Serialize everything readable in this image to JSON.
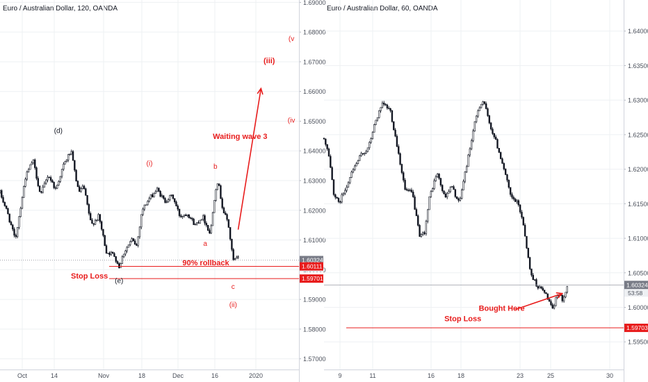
{
  "colors": {
    "accent_red": "#e81c1c",
    "annotation_dark": "#131722",
    "candle": "#131722",
    "axis_text": "#4a4f5a",
    "grid": "#eef0f3",
    "price_tag_gray": "#787b86",
    "timer_tag": "#eef0f3"
  },
  "chart_data": [
    {
      "type": "candlestick",
      "title": "Euro / Australian Dollar, 120, OANDA",
      "symbol": "EURAUD",
      "timeframe": "120",
      "x_ticks": [
        "Oct",
        "14",
        "Nov",
        "18",
        "Dec",
        "16",
        "2020"
      ],
      "y_ticks": [
        "1.57000",
        "1.58000",
        "1.59000",
        "1.60000",
        "1.61000",
        "1.62000",
        "1.63000",
        "1.64000",
        "1.65000",
        "1.66000",
        "1.67000",
        "1.68000",
        "1.69000"
      ],
      "ylim": [
        1.5664,
        1.6908
      ],
      "price_path": [
        [
          0,
          1.626
        ],
        [
          3,
          1.619
        ],
        [
          6,
          1.61
        ],
        [
          10,
          1.631
        ],
        [
          13,
          1.637
        ],
        [
          16,
          1.625
        ],
        [
          19,
          1.632
        ],
        [
          22,
          1.627
        ],
        [
          25,
          1.635
        ],
        [
          28,
          1.64
        ],
        [
          31,
          1.626
        ],
        [
          33,
          1.628
        ],
        [
          36,
          1.615
        ],
        [
          39,
          1.618
        ],
        [
          42,
          1.606
        ],
        [
          45,
          1.605
        ],
        [
          47,
          1.601
        ],
        [
          49,
          1.606
        ],
        [
          52,
          1.61
        ],
        [
          54,
          1.608
        ],
        [
          56,
          1.62
        ],
        [
          59,
          1.624
        ],
        [
          62,
          1.627
        ],
        [
          65,
          1.623
        ],
        [
          68,
          1.625
        ],
        [
          71,
          1.618
        ],
        [
          74,
          1.619
        ],
        [
          77,
          1.615
        ],
        [
          80,
          1.618
        ],
        [
          83,
          1.612
        ],
        [
          85,
          1.627
        ],
        [
          86,
          1.63
        ],
        [
          88,
          1.62
        ],
        [
          90,
          1.616
        ],
        [
          92,
          1.603
        ],
        [
          94,
          1.604
        ]
      ],
      "levels": [
        {
          "value": 1.60324,
          "label": "1.60324",
          "timer": "53:58",
          "style": "dotted-gray"
        },
        {
          "value": 1.60111,
          "label": "1.60111",
          "style": "solid-red"
        },
        {
          "value": 1.59701,
          "label": "1.59701",
          "style": "solid-red"
        }
      ],
      "annotations": [
        {
          "text": "(d)",
          "x": 23,
          "y": 1.646
        },
        {
          "text": "(e)",
          "x": 47,
          "y": 1.5955
        },
        {
          "text": "(i)",
          "x": 59,
          "y": 1.635
        },
        {
          "text": "b",
          "x": 85,
          "y": 1.634
        },
        {
          "text": "a",
          "x": 81,
          "y": 1.608
        },
        {
          "text": "c",
          "x": 92,
          "y": 1.5935
        },
        {
          "text": "(ii)",
          "x": 92,
          "y": 1.5875
        },
        {
          "text": "(iii)",
          "x": 104,
          "y": 1.6695
        },
        {
          "text": "(iv",
          "x": 115,
          "y": 1.6495
        },
        {
          "text": "(v",
          "x": 115,
          "y": 1.677
        },
        {
          "text": "Waiting wave 3",
          "x": 84,
          "y": 1.644
        },
        {
          "text": "90% rollback",
          "x": 72,
          "y": 1.6015
        },
        {
          "text": "Stop Loss",
          "x": 28,
          "y": 1.597
        }
      ],
      "arrow": {
        "from": [
          94,
          1.6135
        ],
        "to": [
          103,
          1.661
        ]
      }
    },
    {
      "type": "candlestick",
      "title": "Euro / Australian Dollar, 60, OANDA",
      "symbol": "EURAUD",
      "timeframe": "60",
      "x_ticks": [
        "9",
        "11",
        "16",
        "18",
        "23",
        "25",
        "30"
      ],
      "y_ticks": [
        "1.59500",
        "1.60000",
        "1.60500",
        "1.61000",
        "1.61500",
        "1.62000",
        "1.62500",
        "1.63000",
        "1.63500",
        "1.64000"
      ],
      "ylim": [
        1.591,
        1.6445
      ],
      "price_path": [
        [
          0,
          1.6245
        ],
        [
          2,
          1.622
        ],
        [
          4,
          1.6165
        ],
        [
          6,
          1.615
        ],
        [
          9,
          1.6175
        ],
        [
          12,
          1.62
        ],
        [
          15,
          1.622
        ],
        [
          18,
          1.623
        ],
        [
          21,
          1.627
        ],
        [
          24,
          1.6295
        ],
        [
          27,
          1.6285
        ],
        [
          30,
          1.623
        ],
        [
          33,
          1.617
        ],
        [
          36,
          1.6165
        ],
        [
          39,
          1.61
        ],
        [
          41,
          1.611
        ],
        [
          43,
          1.616
        ],
        [
          46,
          1.6195
        ],
        [
          49,
          1.616
        ],
        [
          52,
          1.6175
        ],
        [
          55,
          1.615
        ],
        [
          58,
          1.6205
        ],
        [
          61,
          1.626
        ],
        [
          63,
          1.629
        ],
        [
          65,
          1.63
        ],
        [
          67,
          1.627
        ],
        [
          70,
          1.624
        ],
        [
          73,
          1.6205
        ],
        [
          76,
          1.616
        ],
        [
          79,
          1.615
        ],
        [
          81,
          1.6125
        ],
        [
          84,
          1.605
        ],
        [
          87,
          1.603
        ],
        [
          89,
          1.6025
        ],
        [
          91,
          1.6015
        ],
        [
          93,
          1.5995
        ],
        [
          95,
          1.602
        ],
        [
          97,
          1.6012
        ],
        [
          99,
          1.603
        ]
      ],
      "levels": [
        {
          "value": 1.60324,
          "label": "1.60324",
          "timer": "53:58",
          "style": "solid-gray"
        },
        {
          "value": 1.59703,
          "label": "1.59703",
          "style": "solid-red"
        }
      ],
      "annotations": [
        {
          "text": "Bought Here",
          "x": 63,
          "y": 1.5995
        },
        {
          "text": "Stop Loss",
          "x": 49,
          "y": 1.598
        }
      ],
      "arrow": {
        "from": [
          78,
          1.5997
        ],
        "to": [
          97,
          1.602
        ]
      }
    }
  ]
}
